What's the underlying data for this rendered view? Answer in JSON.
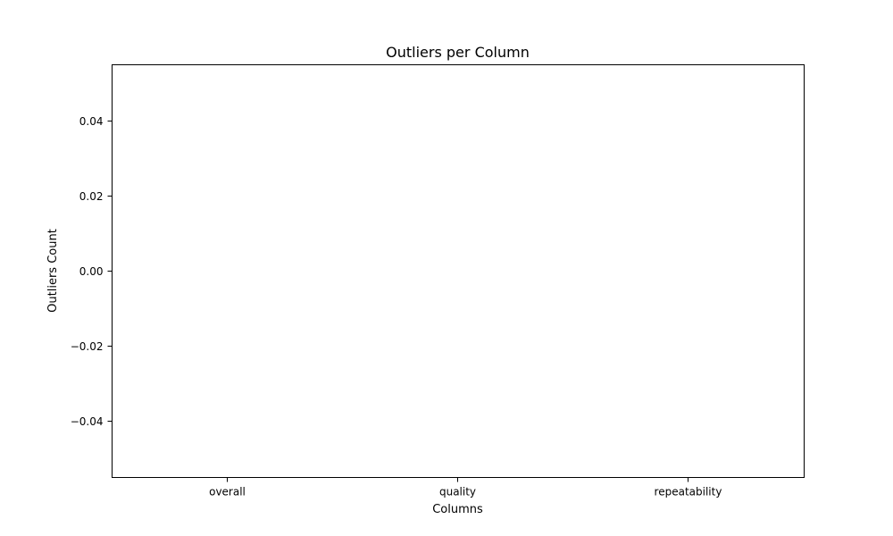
{
  "chart_data": {
    "type": "bar",
    "title": "Outliers per Column",
    "xlabel": "Columns",
    "ylabel": "Outliers Count",
    "categories": [
      "overall",
      "quality",
      "repeatability"
    ],
    "values": [
      0,
      0,
      0
    ],
    "ylim": [
      -0.055,
      0.055
    ],
    "yticks": [
      -0.04,
      -0.02,
      0.0,
      0.02,
      0.04
    ],
    "ytick_labels": [
      "−0.04",
      "−0.02",
      "0.00",
      "0.02",
      "0.04"
    ],
    "grid": false,
    "legend": "none",
    "bar_color": "#1f77b4"
  }
}
